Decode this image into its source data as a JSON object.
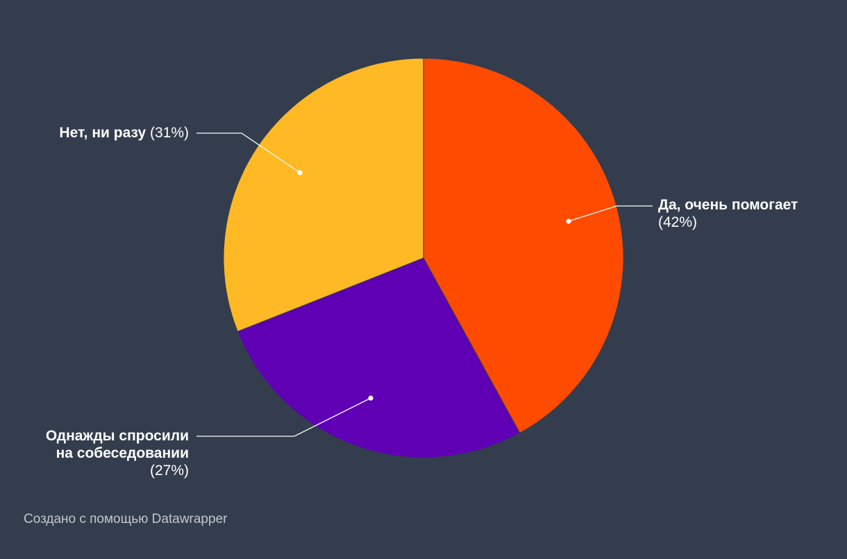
{
  "chart_data": {
    "type": "pie",
    "slices": [
      {
        "label_lines": [
          "Да, очень помогает"
        ],
        "value": 42,
        "value_label": "(42%)",
        "color": "#ff4b00"
      },
      {
        "label_lines": [
          "Однажды спросили",
          "на собеседовании"
        ],
        "value": 27,
        "value_label": "(27%)",
        "color": "#5f00b4"
      },
      {
        "label_lines": [
          "Нет, ни разу"
        ],
        "value": 31,
        "value_label": "(31%)",
        "color": "#ffb924"
      }
    ],
    "background": "#333d4d",
    "label_color": "#ffffff",
    "leader_color": "#ffffff"
  },
  "footer": {
    "credit": "Создано с помощью Datawrapper"
  }
}
